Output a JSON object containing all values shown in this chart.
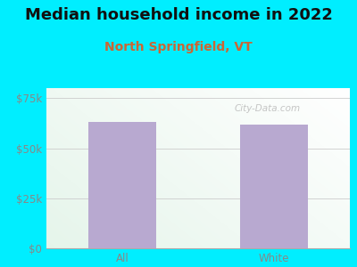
{
  "title": "Median household income in 2022",
  "subtitle": "North Springfield, VT",
  "categories": [
    "All",
    "White"
  ],
  "values": [
    63000,
    62000
  ],
  "bar_color": "#b8a9d0",
  "ylim": [
    0,
    80000
  ],
  "yticks": [
    0,
    25000,
    50000,
    75000
  ],
  "ytick_labels": [
    "$0",
    "$25k",
    "$50k",
    "$75k"
  ],
  "background_outer": "#00eeff",
  "title_fontsize": 13,
  "title_color": "#111111",
  "subtitle_fontsize": 10,
  "subtitle_color": "#cc6633",
  "tick_fontsize": 8.5,
  "tick_color": "#888888",
  "watermark": "City-Data.com",
  "grid_color": "#cccccc",
  "bar_width": 0.45
}
